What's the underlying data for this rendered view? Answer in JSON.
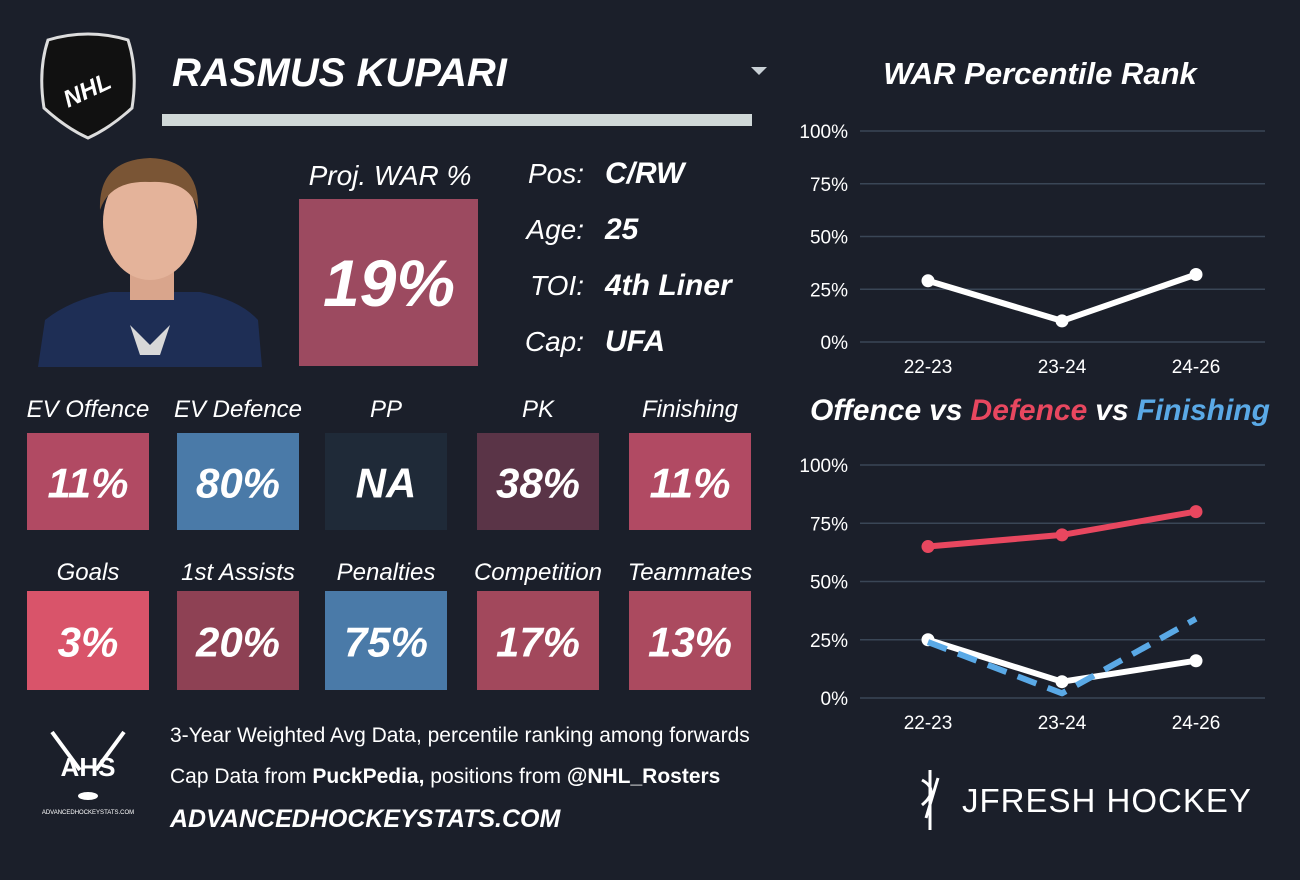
{
  "header": {
    "logo_text": "NHL",
    "player_name": "RASMUS KUPARI"
  },
  "proj_war": {
    "label": "Proj. WAR %",
    "value": "19%",
    "color": "#9c4a60"
  },
  "bio": [
    {
      "label": "Pos:",
      "value": "C/RW"
    },
    {
      "label": "Age:",
      "value": "25"
    },
    {
      "label": "TOI:",
      "value": "4th Liner"
    },
    {
      "label": "Cap:",
      "value": "UFA"
    }
  ],
  "tile_rows": [
    [
      {
        "label": "EV Offence",
        "value": "11%",
        "color": "#b14a63"
      },
      {
        "label": "EV Defence",
        "value": "80%",
        "color": "#4a7aa8"
      },
      {
        "label": "PP",
        "value": "NA",
        "color": "#1f2a38"
      },
      {
        "label": "PK",
        "value": "38%",
        "color": "#5a3447"
      },
      {
        "label": "Finishing",
        "value": "11%",
        "color": "#b14a63"
      }
    ],
    [
      {
        "label": "Goals",
        "value": "3%",
        "color": "#d9546a"
      },
      {
        "label": "1st Assists",
        "value": "20%",
        "color": "#8e4154"
      },
      {
        "label": "Penalties",
        "value": "75%",
        "color": "#4a7aa8"
      },
      {
        "label": "Competition",
        "value": "17%",
        "color": "#a2485c"
      },
      {
        "label": "Teammates",
        "value": "13%",
        "color": "#ab4a5f"
      }
    ]
  ],
  "footer": {
    "ahs_logo": {
      "text": "AHS",
      "caption": "ADVANCEDHOCKEYSTATS.COM"
    },
    "note": "3-Year Weighted Avg Data, percentile ranking among forwards",
    "credits": [
      {
        "text": "Cap Data from ",
        "bold": false
      },
      {
        "text": "PuckPedia,",
        "bold": true
      },
      {
        "text": " positions from ",
        "bold": false
      },
      {
        "text": "@NHL_Rosters",
        "bold": true
      }
    ],
    "website": "ADVANCEDHOCKEYSTATS.COM",
    "brand": "JFRESH HOCKEY"
  },
  "chart_data": [
    {
      "type": "line",
      "title": "WAR Percentile Rank",
      "categories": [
        "22-23",
        "23-24",
        "24-26"
      ],
      "values": [
        29,
        10,
        32
      ],
      "color": "#ffffff",
      "ylim": [
        0,
        100
      ],
      "yticks": [
        {
          "value": 0,
          "label": "0%"
        },
        {
          "value": 25,
          "label": "25%"
        },
        {
          "value": 50,
          "label": "50%"
        },
        {
          "value": 75,
          "label": "75%"
        },
        {
          "value": 100,
          "label": "100%"
        }
      ],
      "grid": true
    },
    {
      "type": "line",
      "title_separator": "vs",
      "categories": [
        "22-23",
        "23-24",
        "24-26"
      ],
      "series": [
        {
          "name": "Offence",
          "color": "#ffffff",
          "values": [
            25,
            7,
            16
          ]
        },
        {
          "name": "Defence",
          "color": "#e8475f",
          "values": [
            65,
            70,
            80
          ]
        },
        {
          "name": "Finishing",
          "color": "#5aa9e6",
          "values": [
            24,
            2,
            34
          ],
          "dashed": true
        }
      ],
      "ylim": [
        0,
        100
      ],
      "yticks": [
        {
          "value": 0,
          "label": "0%"
        },
        {
          "value": 25,
          "label": "25%"
        },
        {
          "value": 50,
          "label": "50%"
        },
        {
          "value": 75,
          "label": "75%"
        },
        {
          "value": 100,
          "label": "100%"
        }
      ],
      "grid": true
    }
  ]
}
